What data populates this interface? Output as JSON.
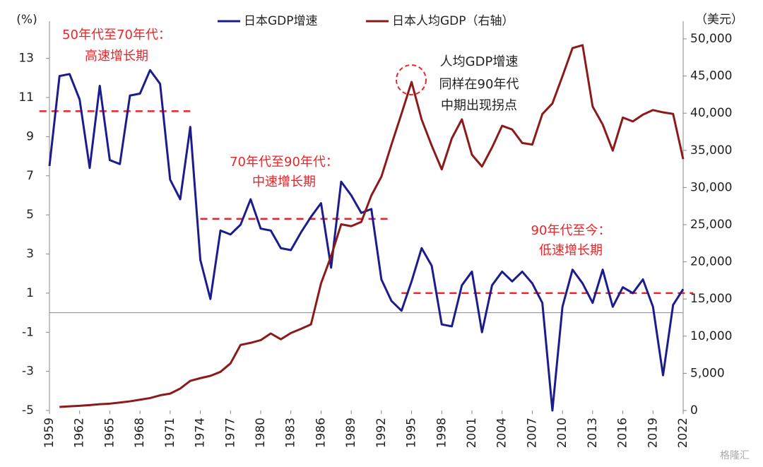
{
  "chart_data": {
    "type": "line",
    "ylabel": "(%)",
    "y2label": "（美元）",
    "x": [
      1959,
      1960,
      1961,
      1962,
      1963,
      1964,
      1965,
      1966,
      1967,
      1968,
      1969,
      1970,
      1971,
      1972,
      1973,
      1974,
      1975,
      1976,
      1977,
      1978,
      1979,
      1980,
      1981,
      1982,
      1983,
      1984,
      1985,
      1986,
      1987,
      1988,
      1989,
      1990,
      1991,
      1992,
      1993,
      1994,
      1995,
      1996,
      1997,
      1998,
      1999,
      2000,
      2001,
      2002,
      2003,
      2004,
      2005,
      2006,
      2007,
      2008,
      2009,
      2010,
      2011,
      2012,
      2013,
      2014,
      2015,
      2016,
      2017,
      2018,
      2019,
      2020,
      2021,
      2022
    ],
    "series": [
      {
        "name": "日本GDP增速",
        "color": "#1c1c8c",
        "axis": "y",
        "values": [
          7.5,
          12.1,
          12.2,
          10.9,
          7.4,
          11.6,
          7.8,
          7.6,
          11.1,
          11.2,
          12.4,
          11.7,
          6.8,
          5.8,
          9.5,
          2.7,
          0.7,
          4.2,
          4.0,
          4.5,
          5.8,
          4.3,
          4.2,
          3.3,
          3.2,
          4.1,
          4.9,
          5.6,
          2.3,
          6.7,
          6.0,
          5.1,
          5.3,
          1.7,
          0.6,
          0.1,
          1.6,
          3.3,
          2.4,
          -0.6,
          -0.7,
          1.4,
          2.1,
          -1.0,
          1.4,
          2.1,
          1.6,
          2.1,
          1.5,
          0.5,
          -5.0,
          0.3,
          2.2,
          1.5,
          0.5,
          2.2,
          0.3,
          1.3,
          1.0,
          1.7,
          0.3,
          -3.2,
          0.4,
          1.2
        ]
      },
      {
        "name": "日本人均GDP（右轴）",
        "color": "#8b1a1a",
        "axis": "y2",
        "values": [
          null,
          480,
          560,
          630,
          720,
          840,
          920,
          1070,
          1230,
          1450,
          1670,
          2040,
          2270,
          2950,
          3990,
          4350,
          4660,
          5200,
          6340,
          8820,
          9100,
          9460,
          10360,
          9580,
          10420,
          10980,
          11580,
          17110,
          20750,
          25050,
          24800,
          25370,
          28920,
          31460,
          35770,
          39930,
          44200,
          39150,
          35640,
          32440,
          36610,
          39170,
          34410,
          32820,
          35390,
          38300,
          37810,
          35990,
          35780,
          39880,
          41310,
          44970,
          48760,
          49150,
          40900,
          38480,
          34960,
          39410,
          38890,
          39810,
          40420,
          40110,
          39900,
          33820
        ]
      }
    ],
    "xlim": [
      1959,
      2022
    ],
    "xticks": [
      1959,
      1962,
      1965,
      1968,
      1971,
      1974,
      1977,
      1980,
      1983,
      1986,
      1989,
      1992,
      1995,
      1998,
      2001,
      2004,
      2007,
      2010,
      2013,
      2016,
      2019,
      2022
    ],
    "ylim": [
      -5,
      14
    ],
    "yticks": [
      -5,
      -3,
      -1,
      1,
      3,
      5,
      7,
      9,
      11,
      13
    ],
    "y2lim": [
      0,
      50000
    ],
    "y2ticks": [
      0,
      {
        "value": 5000,
        "label": "5,000"
      },
      {
        "value": 10000,
        "label": "10,000"
      },
      {
        "value": 15000,
        "label": "15,000"
      },
      {
        "value": 20000,
        "label": "20,000"
      },
      {
        "value": 25000,
        "label": "25,000"
      },
      {
        "value": 30000,
        "label": "30,000"
      },
      {
        "value": 35000,
        "label": "35,000"
      },
      {
        "value": 40000,
        "label": "40,000"
      },
      {
        "value": 45000,
        "label": "45,000"
      },
      {
        "value": 50000,
        "label": "50,000"
      }
    ],
    "grid": false,
    "legend": "top",
    "reference_lines": [
      {
        "value": 10.3,
        "from": 1958,
        "to": 1973,
        "color": "#e8262a"
      },
      {
        "value": 4.8,
        "from": 1974,
        "to": 1993,
        "color": "#e8262a"
      },
      {
        "value": 1.0,
        "from": 1994,
        "to": 2023,
        "color": "#e8262a"
      }
    ],
    "annotations": [
      [
        "50年代至70年代：",
        "高速增长期"
      ],
      [
        "70年代至90年代：",
        "中速增长期"
      ],
      [
        "90年代至今：",
        "低速增长期"
      ],
      [
        "人均GDP增速",
        "同样在90年代",
        "中期出现拐点"
      ]
    ],
    "watermark": "格隆汇"
  }
}
